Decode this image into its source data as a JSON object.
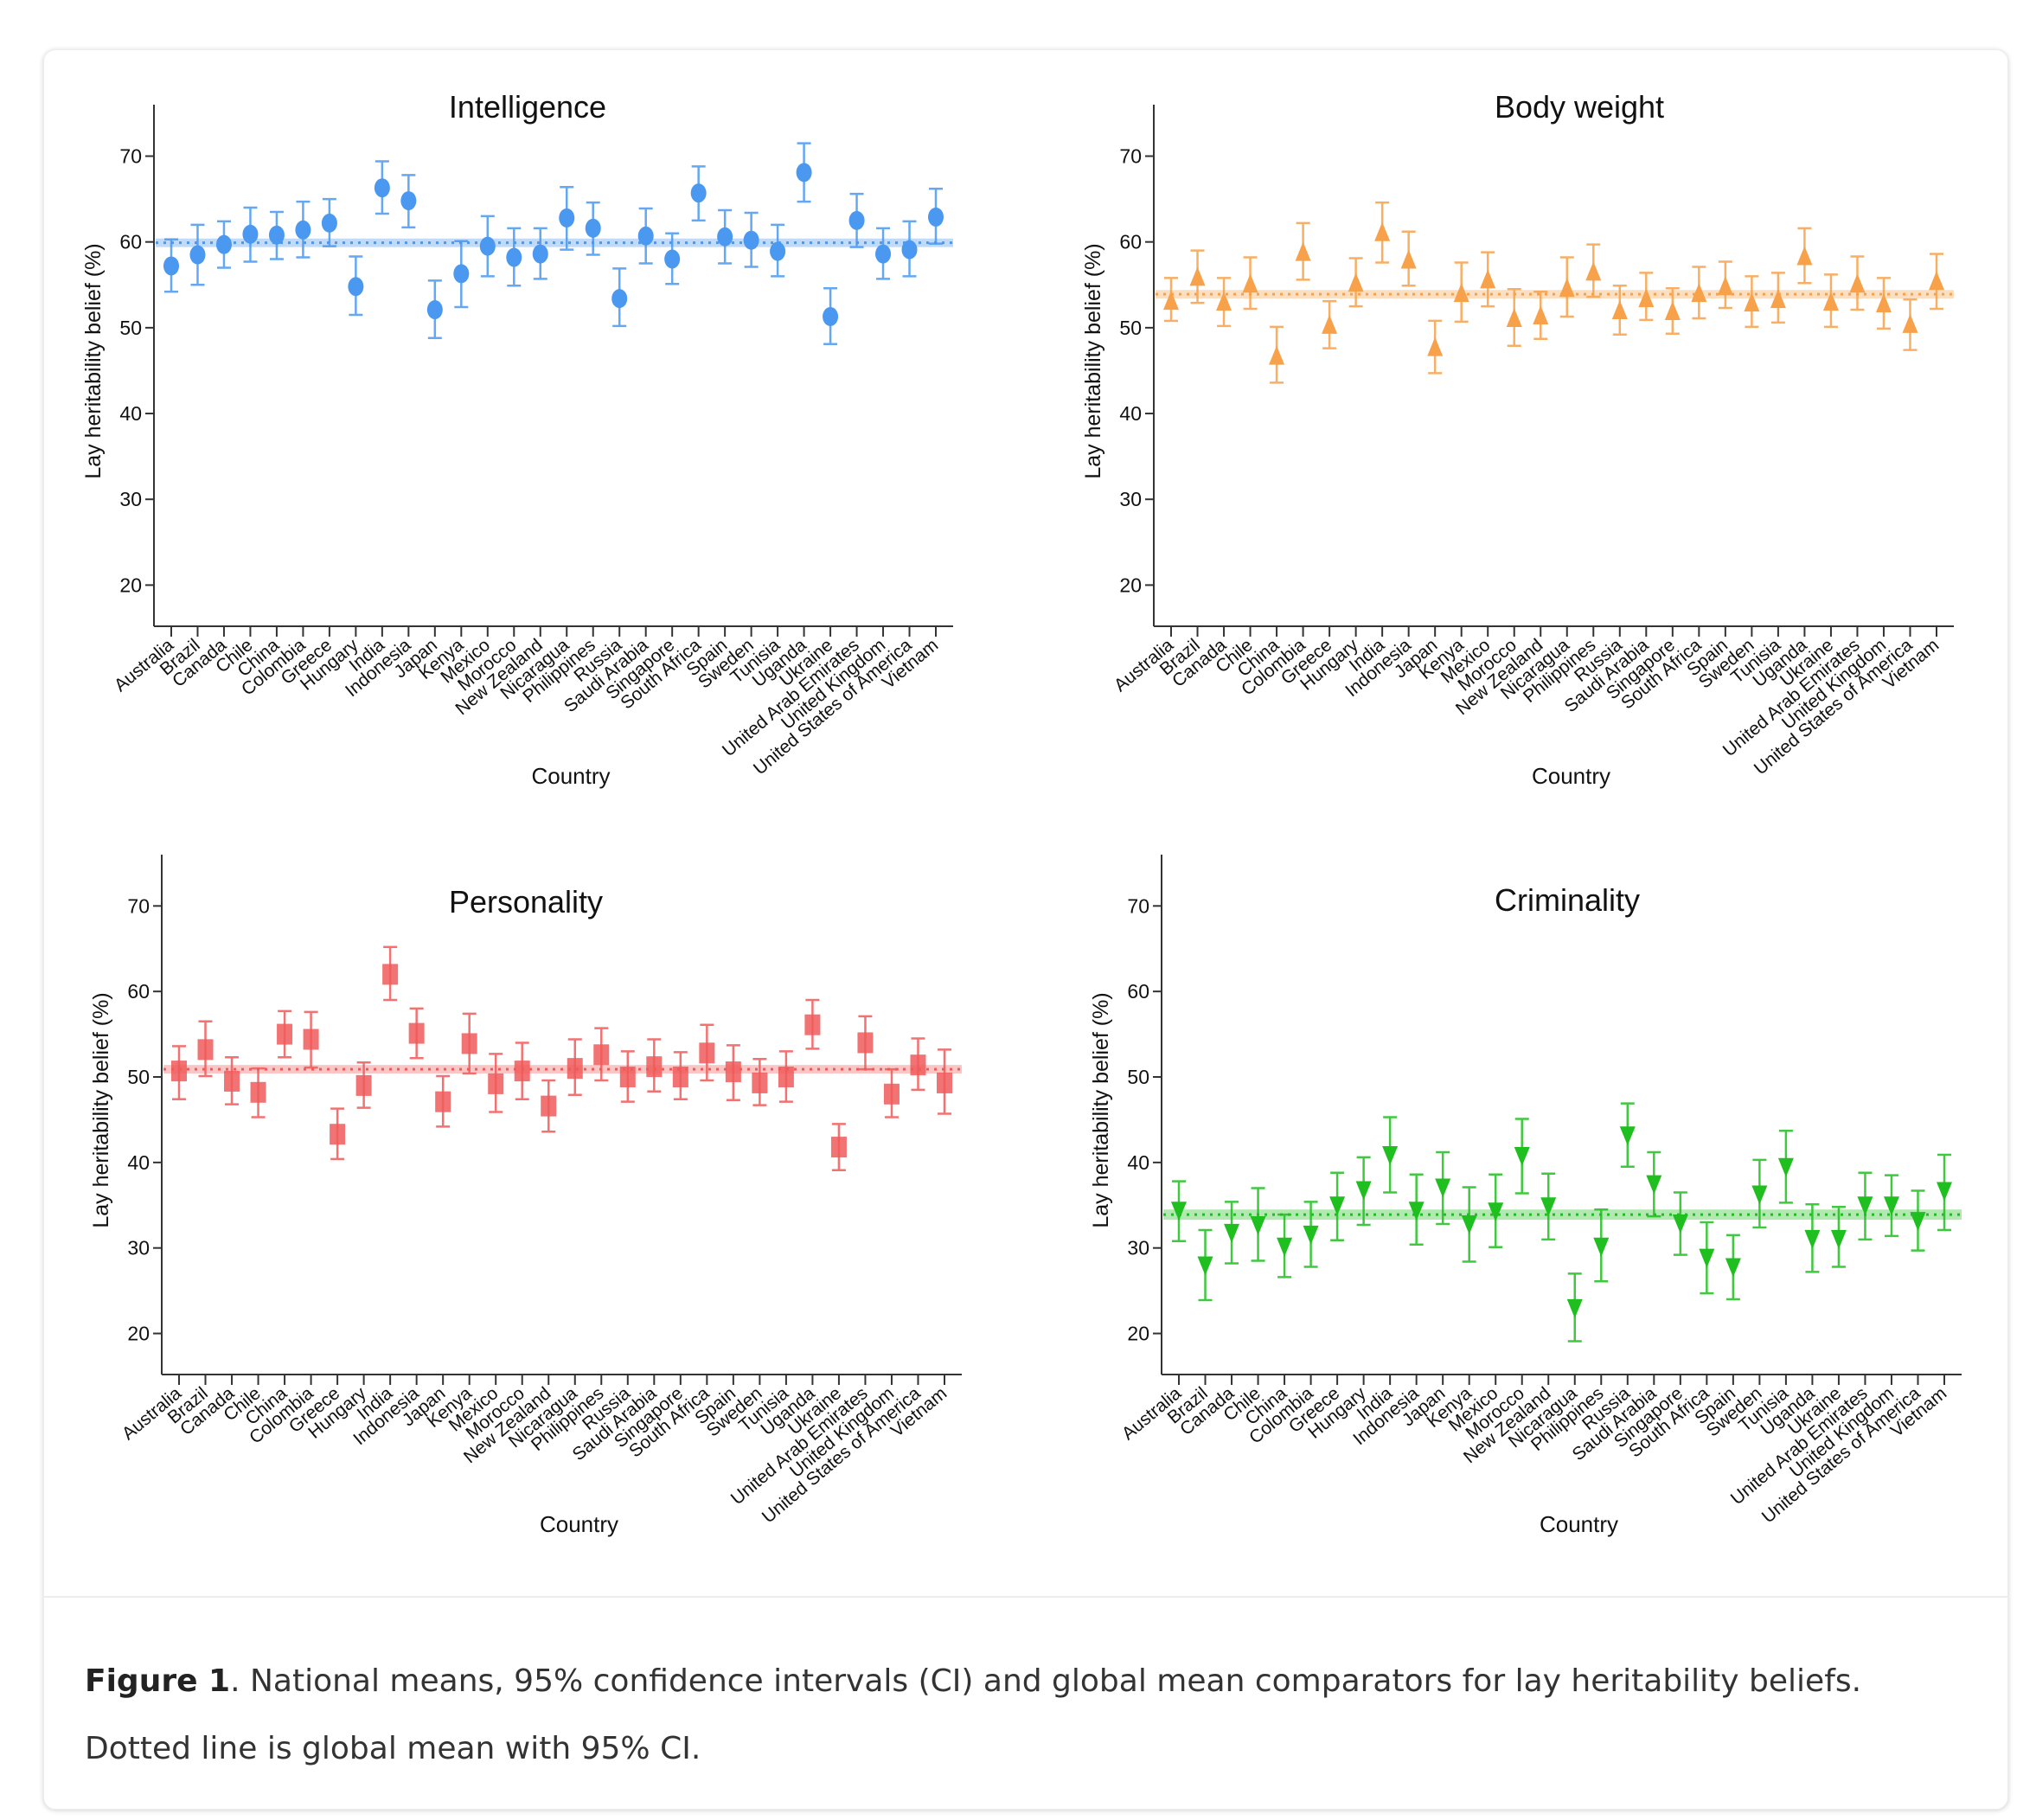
{
  "caption": {
    "label": "Figure 1",
    "text": ". National means, 95% confidence intervals (CI) and global mean comparators for lay heritability beliefs.",
    "text2": "Dotted line is global mean with 95% CI."
  },
  "chart_data": [
    {
      "type": "scatter",
      "title": "Intelligence",
      "xlabel": "Country",
      "ylabel": "Lay heritability belief (%)",
      "ylim": [
        15.2,
        76
      ],
      "yticks": [
        20,
        30,
        40,
        50,
        60,
        70
      ],
      "marker": "circle",
      "color": "#4a98f0",
      "error_bars": "95% CI",
      "global_mean": {
        "mean": 59.9,
        "low": 59.4,
        "high": 60.4
      },
      "categories": [
        "Australia",
        "Brazil",
        "Canada",
        "Chile",
        "China",
        "Colombia",
        "Greece",
        "Hungary",
        "India",
        "Indonesia",
        "Japan",
        "Kenya",
        "Mexico",
        "Morocco",
        "New Zealand",
        "Nicaragua",
        "Philippines",
        "Russia",
        "Saudi Arabia",
        "Singapore",
        "South Africa",
        "Spain",
        "Sweden",
        "Tunisia",
        "Uganda",
        "Ukraine",
        "United Arab Emirates",
        "United Kingdom",
        "United States of America",
        "Vietnam"
      ],
      "values": [
        57.2,
        58.5,
        59.7,
        60.9,
        60.8,
        61.4,
        62.2,
        54.8,
        66.3,
        64.8,
        52.1,
        56.3,
        59.5,
        58.2,
        58.6,
        62.8,
        61.6,
        53.4,
        60.7,
        58.0,
        65.7,
        60.6,
        60.2,
        58.9,
        68.1,
        51.3,
        62.5,
        58.6,
        59.1,
        62.9
      ],
      "low": [
        54.2,
        55.0,
        57.0,
        57.7,
        58.0,
        58.2,
        59.5,
        51.5,
        63.3,
        61.7,
        48.8,
        52.4,
        56.0,
        54.9,
        55.7,
        59.1,
        58.5,
        50.2,
        57.5,
        55.1,
        62.5,
        57.5,
        57.1,
        56.0,
        64.7,
        48.1,
        59.4,
        55.7,
        56.0,
        59.8
      ],
      "high": [
        60.3,
        62.0,
        62.4,
        64.0,
        63.5,
        64.7,
        65.0,
        58.3,
        69.4,
        67.8,
        55.5,
        60.1,
        63.0,
        61.6,
        61.6,
        66.4,
        64.6,
        56.9,
        63.9,
        61.0,
        68.8,
        63.7,
        63.4,
        62.0,
        71.5,
        54.6,
        65.6,
        61.6,
        62.4,
        66.2
      ]
    },
    {
      "type": "scatter",
      "title": "Body weight",
      "xlabel": "Country",
      "ylabel": "Lay heritability belief (%)",
      "ylim": [
        15.2,
        76
      ],
      "yticks": [
        20,
        30,
        40,
        50,
        60,
        70
      ],
      "marker": "triangle-up",
      "color": "#f7a24b",
      "error_bars": "95% CI",
      "global_mean": {
        "mean": 53.9,
        "low": 53.4,
        "high": 54.4
      },
      "categories": [
        "Australia",
        "Brazil",
        "Canada",
        "Chile",
        "China",
        "Colombia",
        "Greece",
        "Hungary",
        "India",
        "Indonesia",
        "Japan",
        "Kenya",
        "Mexico",
        "Morocco",
        "New Zealand",
        "Nicaragua",
        "Philippines",
        "Russia",
        "Saudi Arabia",
        "Singapore",
        "South Africa",
        "Spain",
        "Sweden",
        "Tunisia",
        "Uganda",
        "Ukraine",
        "United Arab Emirates",
        "United Kingdom",
        "United States of America",
        "Vietnam"
      ],
      "values": [
        53.0,
        55.8,
        52.9,
        55.0,
        46.6,
        58.7,
        50.2,
        55.1,
        61.0,
        57.8,
        47.6,
        53.9,
        55.5,
        51.0,
        51.3,
        54.5,
        56.4,
        51.9,
        53.3,
        51.8,
        53.9,
        54.7,
        52.8,
        53.2,
        58.2,
        52.9,
        55.0,
        52.7,
        50.3,
        55.3
      ],
      "low": [
        50.8,
        52.9,
        50.2,
        52.2,
        43.6,
        55.6,
        47.6,
        52.5,
        57.6,
        54.9,
        44.7,
        50.7,
        52.5,
        47.9,
        48.7,
        51.3,
        53.6,
        49.2,
        50.9,
        49.3,
        51.1,
        52.3,
        50.1,
        50.6,
        55.2,
        50.1,
        52.1,
        49.9,
        47.4,
        52.2
      ],
      "high": [
        55.8,
        59.0,
        55.8,
        58.2,
        50.1,
        62.2,
        53.1,
        58.1,
        64.6,
        61.2,
        50.8,
        57.6,
        58.8,
        54.5,
        54.2,
        58.2,
        59.7,
        54.9,
        56.4,
        54.6,
        57.1,
        57.7,
        56.0,
        56.4,
        61.6,
        56.2,
        58.3,
        55.8,
        53.3,
        58.6
      ]
    },
    {
      "type": "scatter",
      "title": "Personality",
      "xlabel": "Country",
      "ylabel": "Lay heritability belief (%)",
      "ylim": [
        15.2,
        76
      ],
      "yticks": [
        20,
        30,
        40,
        50,
        60,
        70
      ],
      "marker": "square",
      "color": "#f05a5a",
      "error_bars": "95% CI",
      "global_mean": {
        "mean": 50.9,
        "low": 50.4,
        "high": 51.4
      },
      "categories": [
        "Australia",
        "Brazil",
        "Canada",
        "Chile",
        "China",
        "Colombia",
        "Greece",
        "Hungary",
        "India",
        "Indonesia",
        "Japan",
        "Kenya",
        "Mexico",
        "Morocco",
        "New Zealand",
        "Nicaragua",
        "Philippines",
        "Russia",
        "Saudi Arabia",
        "Singapore",
        "South Africa",
        "Spain",
        "Sweden",
        "Tunisia",
        "Uganda",
        "Ukraine",
        "United Arab Emirates",
        "United Kingdom",
        "United States of America",
        "Vietnam"
      ],
      "values": [
        50.7,
        53.2,
        49.5,
        48.2,
        55.0,
        54.4,
        43.3,
        49.0,
        62.0,
        55.1,
        47.1,
        53.9,
        49.2,
        50.7,
        46.6,
        51.0,
        52.6,
        50.0,
        51.2,
        50.0,
        52.8,
        50.6,
        49.3,
        50.0,
        56.1,
        41.8,
        54.0,
        48.0,
        51.4,
        49.3
      ],
      "low": [
        47.4,
        50.1,
        46.8,
        45.3,
        52.3,
        51.1,
        40.4,
        46.4,
        59.0,
        52.2,
        44.2,
        50.4,
        45.9,
        47.4,
        43.6,
        47.9,
        49.6,
        47.1,
        48.3,
        47.4,
        49.6,
        47.3,
        46.7,
        47.1,
        53.3,
        39.1,
        50.9,
        45.3,
        48.5,
        45.7
      ],
      "high": [
        53.6,
        56.5,
        52.3,
        51.0,
        57.7,
        57.6,
        46.3,
        51.7,
        65.2,
        58.0,
        50.1,
        57.4,
        52.7,
        54.0,
        49.6,
        54.4,
        55.7,
        53.0,
        54.4,
        52.9,
        56.1,
        53.7,
        52.1,
        53.0,
        59.0,
        44.5,
        57.1,
        50.9,
        54.5,
        53.2
      ]
    },
    {
      "type": "scatter",
      "title": "Criminality",
      "xlabel": "Country",
      "ylabel": "Lay heritability belief (%)",
      "ylim": [
        15.2,
        76
      ],
      "yticks": [
        20,
        30,
        40,
        50,
        60,
        70
      ],
      "marker": "triangle-down",
      "color": "#1fbf1f",
      "error_bars": "95% CI",
      "global_mean": {
        "mean": 33.9,
        "low": 33.3,
        "high": 34.5
      },
      "categories": [
        "Australia",
        "Brazil",
        "Canada",
        "Chile",
        "China",
        "Colombia",
        "Greece",
        "Hungary",
        "India",
        "Indonesia",
        "Japan",
        "Kenya",
        "Mexico",
        "Morocco",
        "New Zealand",
        "Nicaragua",
        "Philippines",
        "Russia",
        "Saudi Arabia",
        "Singapore",
        "South Africa",
        "Spain",
        "Sweden",
        "Tunisia",
        "Uganda",
        "Ukraine",
        "United Arab Emirates",
        "United Kingdom",
        "United States of America",
        "Vietnam"
      ],
      "values": [
        34.5,
        28.1,
        31.9,
        32.8,
        30.3,
        31.7,
        35.1,
        36.9,
        41.0,
        34.5,
        37.2,
        32.9,
        34.4,
        40.9,
        35.0,
        23.1,
        30.3,
        43.3,
        37.6,
        33.0,
        29.0,
        27.9,
        36.4,
        39.6,
        31.2,
        31.2,
        35.1,
        35.1,
        33.3,
        36.8
      ],
      "low": [
        30.8,
        23.9,
        28.2,
        28.5,
        26.6,
        27.8,
        30.9,
        32.7,
        36.5,
        30.4,
        32.8,
        28.4,
        30.1,
        36.4,
        31.0,
        19.1,
        26.1,
        39.5,
        33.7,
        29.2,
        24.7,
        24.0,
        32.4,
        35.3,
        27.2,
        27.8,
        31.0,
        31.4,
        29.7,
        32.1
      ],
      "high": [
        37.8,
        32.1,
        35.4,
        37.0,
        33.9,
        35.4,
        38.8,
        40.6,
        45.3,
        38.6,
        41.2,
        37.1,
        38.6,
        45.1,
        38.7,
        27.0,
        34.5,
        46.9,
        41.2,
        36.5,
        33.0,
        31.5,
        40.3,
        43.7,
        35.1,
        34.8,
        38.8,
        38.5,
        36.7,
        40.9
      ]
    }
  ]
}
